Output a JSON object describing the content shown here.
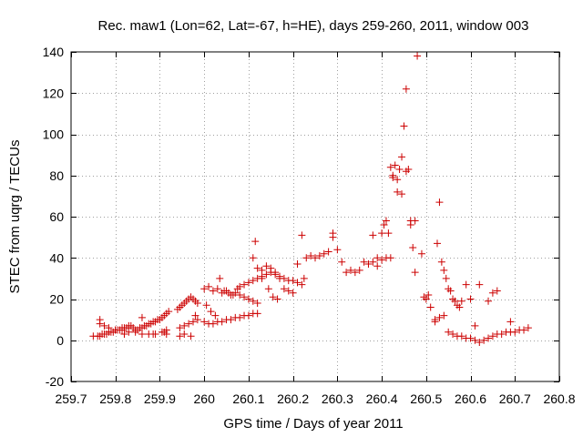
{
  "chart_data": {
    "type": "scatter",
    "title": "Rec. maw1 (Lon=62, Lat=-67, h=HE), days 259-260, 2011, window 003",
    "xlabel": "GPS time / Days of year 2011",
    "ylabel": "STEC from uqrg / TECUs",
    "xlim": [
      259.7,
      260.8
    ],
    "ylim": [
      -20,
      140
    ],
    "xticks": [
      259.7,
      259.8,
      259.9,
      260,
      260.1,
      260.2,
      260.3,
      260.4,
      260.5,
      260.6,
      260.7,
      260.8
    ],
    "xtick_labels": [
      "259.7",
      "259.8",
      "259.9",
      "260",
      "260.1",
      "260.2",
      "260.3",
      "260.4",
      "260.5",
      "260.6",
      "260.7",
      "260.8"
    ],
    "yticks": [
      -20,
      0,
      20,
      40,
      60,
      80,
      100,
      120,
      140
    ],
    "ytick_labels": [
      "-20",
      "0",
      "20",
      "40",
      "60",
      "80",
      "100",
      "120",
      "140"
    ],
    "grid": true,
    "marker": "+",
    "color": "#cc0000",
    "series": [
      {
        "x": [
          259.75,
          259.76,
          259.765,
          259.77,
          259.775,
          259.78,
          259.785,
          259.79,
          259.795,
          259.8,
          259.805,
          259.81,
          259.815,
          259.82,
          259.825,
          259.83,
          259.835,
          259.84,
          259.845,
          259.85,
          259.855,
          259.86,
          259.865,
          259.87,
          259.875,
          259.88,
          259.885,
          259.89,
          259.895,
          259.9,
          259.905,
          259.91,
          259.915,
          259.92,
          259.94,
          259.945,
          259.95,
          259.955,
          259.96,
          259.965,
          259.97,
          259.975,
          259.98,
          259.985,
          259.765,
          259.775,
          259.785,
          259.8,
          259.815,
          259.83,
          259.845,
          259.86,
          259.875,
          259.89,
          259.905,
          259.915,
          259.945,
          259.955,
          259.965,
          259.975,
          259.985,
          259.765,
          259.82,
          259.86,
          259.885,
          259.91,
          259.915,
          259.945,
          259.955,
          259.97,
          259.98,
          260.0,
          260.01,
          260.02,
          260.03,
          260.04,
          260.05,
          260.06,
          260.07,
          260.08,
          260.09,
          260.1,
          260.11,
          260.12,
          260.0,
          260.01,
          260.02,
          260.03,
          260.04,
          260.05,
          260.06,
          260.07,
          260.08,
          260.09,
          260.1,
          260.11,
          260.12,
          260.005,
          260.015,
          260.025,
          260.035,
          260.045,
          260.055,
          260.065,
          260.075,
          260.08,
          260.09,
          260.1,
          260.11,
          260.12,
          260.13,
          260.14,
          260.15,
          260.16,
          260.17,
          260.18,
          260.19,
          260.2,
          260.21,
          260.22,
          260.11,
          260.12,
          260.13,
          260.14,
          260.15,
          260.16,
          260.17,
          260.18,
          260.19,
          260.2,
          260.115,
          260.13,
          260.145,
          260.155,
          260.165,
          260.21,
          260.22,
          260.23,
          260.24,
          260.25,
          260.26,
          260.27,
          260.28,
          260.29,
          260.3,
          260.31,
          260.32,
          260.33,
          260.34,
          260.35,
          260.36,
          260.37,
          260.38,
          260.39,
          260.4,
          260.41,
          260.42,
          260.225,
          260.29,
          260.38,
          260.39,
          260.4,
          260.405,
          260.41,
          260.415,
          260.42,
          260.425,
          260.43,
          260.435,
          260.44,
          260.445,
          260.45,
          260.455,
          260.46,
          260.465,
          260.47,
          260.475,
          260.48,
          260.425,
          260.435,
          260.445,
          260.455,
          260.465,
          260.475,
          260.49,
          260.495,
          260.5,
          260.505,
          260.51,
          260.52,
          260.525,
          260.53,
          260.535,
          260.54,
          260.545,
          260.55,
          260.555,
          260.56,
          260.565,
          260.57,
          260.575,
          260.58,
          260.59,
          260.6,
          260.61,
          260.52,
          260.53,
          260.54,
          260.55,
          260.56,
          260.57,
          260.58,
          260.59,
          260.6,
          260.61,
          260.62,
          260.63,
          260.64,
          260.65,
          260.66,
          260.67,
          260.68,
          260.69,
          260.7,
          260.71,
          260.72,
          260.73,
          260.62,
          260.64,
          260.65,
          260.66,
          260.69
        ],
        "y": [
          2,
          2,
          2,
          3,
          3,
          3,
          4,
          4,
          4,
          5,
          5,
          5,
          6,
          6,
          6,
          7,
          7,
          6,
          5,
          5,
          6,
          6,
          7,
          7,
          8,
          8,
          9,
          9,
          10,
          10,
          11,
          12,
          13,
          14,
          15,
          16,
          17,
          18,
          19,
          20,
          21,
          20,
          19,
          18,
          8,
          7,
          6,
          5,
          5,
          4,
          4,
          3,
          3,
          3,
          4,
          5,
          6,
          7,
          8,
          9,
          10,
          10,
          3,
          11,
          3,
          4,
          3,
          2,
          3,
          2,
          12,
          25,
          26,
          24,
          25,
          23,
          24,
          22,
          23,
          22,
          21,
          20,
          19,
          18,
          9,
          8,
          8,
          9,
          9,
          10,
          10,
          11,
          11,
          12,
          12,
          13,
          13,
          17,
          14,
          12,
          30,
          24,
          23,
          22,
          25,
          26,
          27,
          28,
          29,
          30,
          31,
          32,
          33,
          32,
          31,
          30,
          29,
          29,
          28,
          27,
          40,
          35,
          34,
          36,
          35,
          33,
          30,
          25,
          24,
          23,
          48,
          30,
          25,
          21,
          20,
          37,
          51,
          40,
          41,
          40,
          41,
          42,
          43,
          50,
          44,
          38,
          33,
          34,
          33,
          34,
          38,
          37,
          38,
          40,
          39,
          40,
          40,
          30,
          52,
          51,
          36,
          52,
          56,
          58,
          52,
          84,
          79,
          85,
          72,
          83,
          89,
          104,
          122,
          83,
          58,
          45,
          58,
          138,
          80,
          78,
          71,
          82,
          56,
          33,
          42,
          21,
          20,
          22,
          16,
          10,
          47,
          67,
          38,
          34,
          30,
          25,
          24,
          20,
          19,
          17,
          16,
          19,
          27,
          20,
          7,
          9,
          11,
          12,
          4,
          3,
          2,
          2,
          1,
          1,
          0,
          -1,
          0,
          1,
          2,
          3,
          3,
          4,
          4,
          4,
          5,
          5,
          6,
          27,
          19,
          23,
          24,
          9
        ]
      }
    ]
  }
}
